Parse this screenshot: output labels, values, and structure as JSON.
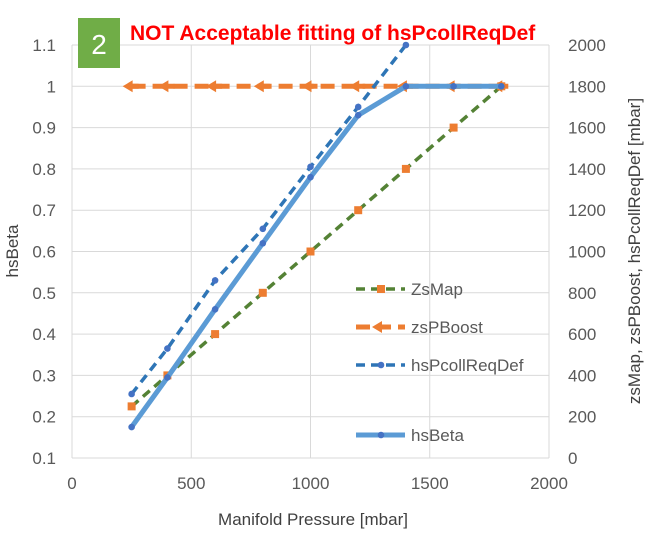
{
  "chart_data": {
    "type": "line",
    "title": "NOT Acceptable fitting of hsPcollReqDef",
    "badge": "2",
    "xlabel": "Manifold Pressure [mbar]",
    "ylabel": "hsBeta",
    "y2label": "zsMap, zsPBoost, hsPcollReqDef [mbar]",
    "xlim": [
      0,
      2000
    ],
    "ylim": [
      0.1,
      1.1
    ],
    "y2lim": [
      0,
      2000
    ],
    "x_ticks": [
      "0",
      "500",
      "1000",
      "1500",
      "2000"
    ],
    "y_ticks": [
      "0.1",
      "0.2",
      "0.3",
      "0.4",
      "0.5",
      "0.6",
      "0.7",
      "0.8",
      "0.9",
      "1",
      "1.1"
    ],
    "y2_ticks": [
      "0",
      "200",
      "400",
      "600",
      "800",
      "1000",
      "1200",
      "1400",
      "1600",
      "1800",
      "2000"
    ],
    "grid": true,
    "legend_position": "right-inside",
    "series": [
      {
        "name": "ZsMap",
        "axis": "right",
        "color": "#548235",
        "marker": "square",
        "marker_color": "#ed7d31",
        "dash": "dashed",
        "x": [
          250,
          400,
          600,
          800,
          1000,
          1200,
          1400,
          1600,
          1800
        ],
        "y": [
          250,
          400,
          600,
          800,
          1000,
          1200,
          1400,
          1600,
          1800
        ]
      },
      {
        "name": "zsPBoost",
        "axis": "right",
        "color": "#ed7d31",
        "marker": "arrow",
        "marker_color": "#ed7d31",
        "dash": "dashed-thick",
        "x": [
          250,
          400,
          600,
          800,
          1000,
          1200,
          1400,
          1600,
          1800
        ],
        "y": [
          1800,
          1800,
          1800,
          1800,
          1800,
          1800,
          1800,
          1800,
          1800
        ]
      },
      {
        "name": "hsPcollReqDef",
        "axis": "right",
        "color": "#2e75b6",
        "marker": "circle",
        "marker_color": "#4472c4",
        "dash": "dashed",
        "x": [
          250,
          400,
          600,
          800,
          1000,
          1200,
          1400
        ],
        "y": [
          310,
          530,
          860,
          1110,
          1410,
          1700,
          2000
        ]
      },
      {
        "name": "hsBeta",
        "axis": "left",
        "color": "#5b9bd5",
        "marker": "circle",
        "marker_color": "#4472c4",
        "dash": "solid",
        "x": [
          250,
          400,
          600,
          800,
          1000,
          1200,
          1400,
          1600,
          1800
        ],
        "y": [
          0.175,
          0.295,
          0.46,
          0.62,
          0.78,
          0.93,
          1.0,
          1.0,
          1.0
        ]
      }
    ]
  }
}
